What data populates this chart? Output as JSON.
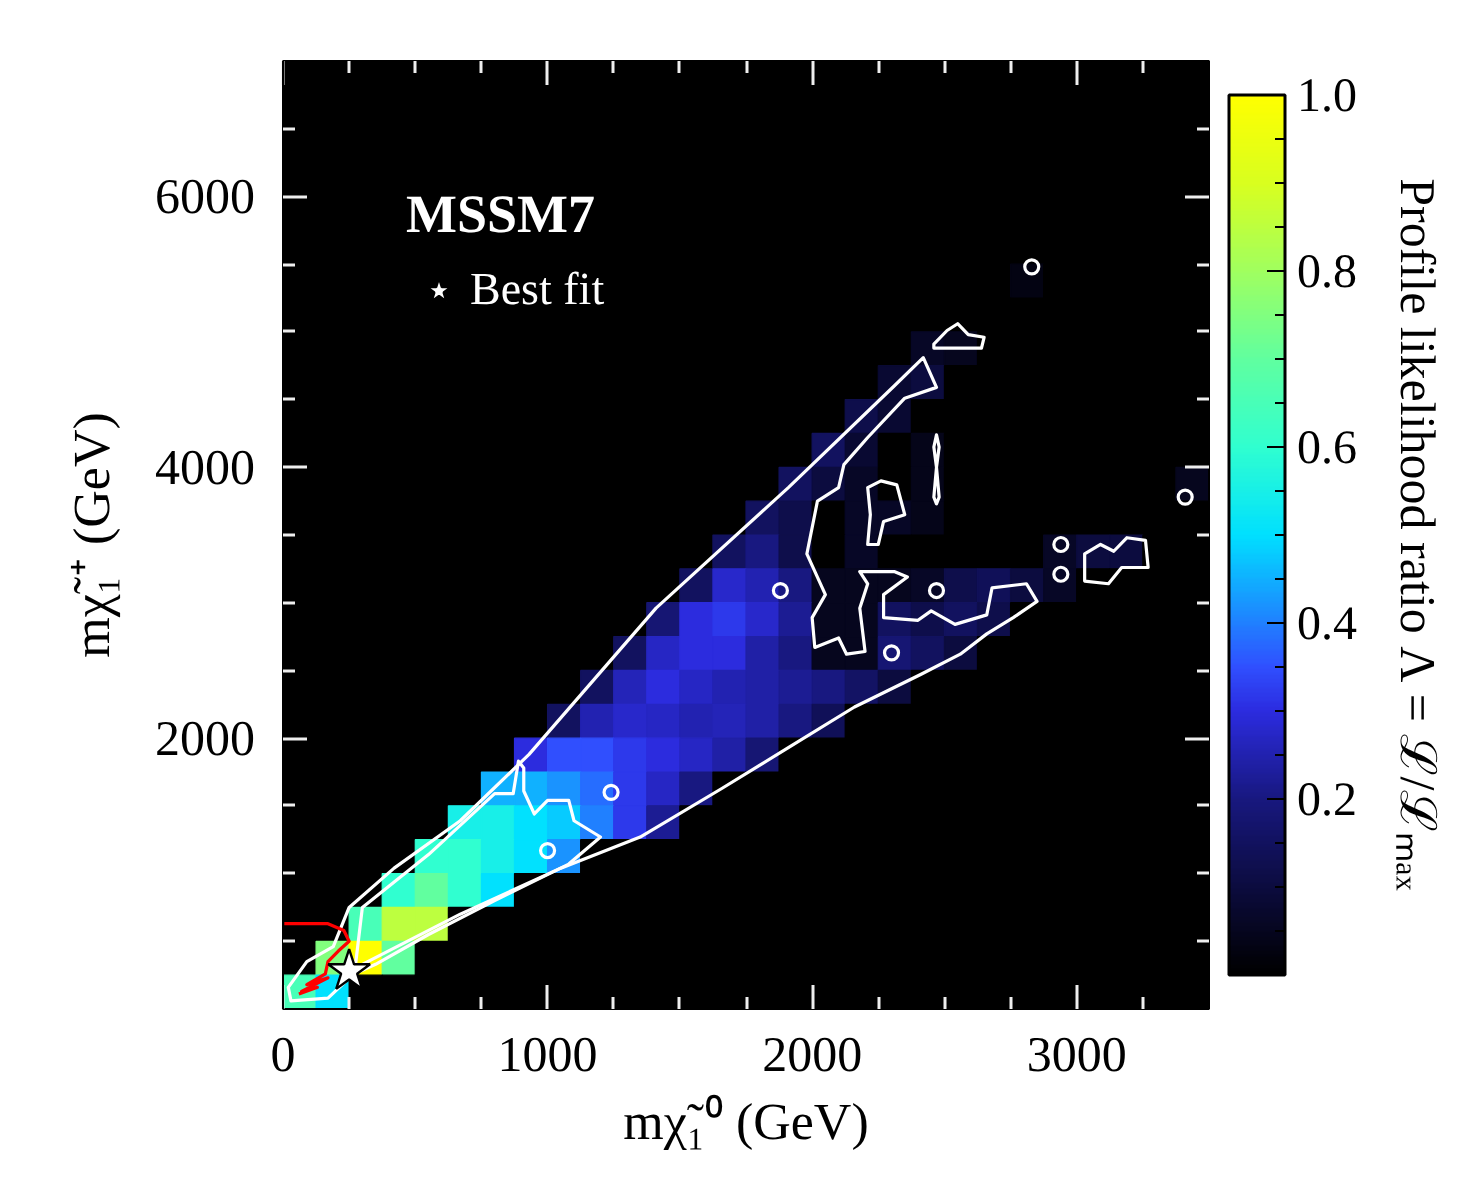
{
  "chart_data": {
    "type": "heatmap",
    "xlabel": "mχ̃₁⁰ (GeV)",
    "ylabel": "mχ̃₁⁺ (GeV)",
    "clabel": "Profile likelihood ratio Λ = ℒ/ℒₘₐₓ",
    "legend_title": "MSSM7",
    "legend": "top left",
    "xlim": [
      0,
      3500
    ],
    "ylim": [
      0,
      7000
    ],
    "xticks": [
      0,
      {
        "value": 250,
        "label": null
      },
      {
        "value": 500,
        "label": null
      },
      {
        "value": 750,
        "label": null
      },
      1000,
      {
        "value": 1250,
        "label": null
      },
      {
        "value": 1500,
        "label": null
      },
      {
        "value": 1750,
        "label": null
      },
      2000,
      {
        "value": 2250,
        "label": null
      },
      {
        "value": 2500,
        "label": null
      },
      {
        "value": 2750,
        "label": null
      },
      3000,
      {
        "value": 3250,
        "label": null
      }
    ],
    "yticks": [
      {
        "value": 500,
        "label": null
      },
      {
        "value": 1000,
        "label": null
      },
      {
        "value": 1500,
        "label": null
      },
      2000,
      {
        "value": 2500,
        "label": null
      },
      {
        "value": 3000,
        "label": null
      },
      {
        "value": 3500,
        "label": null
      },
      4000,
      {
        "value": 4500,
        "label": null
      },
      {
        "value": 5000,
        "label": null
      },
      {
        "value": 5500,
        "label": null
      },
      6000,
      {
        "value": 6500,
        "label": null
      }
    ],
    "clim": [
      0,
      1
    ],
    "cticks": [
      {
        "value": 0.05,
        "label": null
      },
      {
        "value": 0.1,
        "label": null
      },
      {
        "value": 0.15,
        "label": null
      },
      0.2,
      {
        "value": 0.25,
        "label": null
      },
      {
        "value": 0.3,
        "label": null
      },
      {
        "value": 0.35,
        "label": null
      },
      0.4,
      {
        "value": 0.45,
        "label": null
      },
      {
        "value": 0.5,
        "label": null
      },
      {
        "value": 0.55,
        "label": null
      },
      0.6,
      {
        "value": 0.65,
        "label": null
      },
      {
        "value": 0.7,
        "label": null
      },
      {
        "value": 0.75,
        "label": null
      },
      0.8,
      {
        "value": 0.85,
        "label": null
      },
      {
        "value": 0.9,
        "label": null
      },
      {
        "value": 0.95,
        "label": null
      },
      {
        "value": 1,
        "label": "1.0"
      }
    ],
    "cells": [
      [
        0,
        0,
        0,
        0,
        0,
        0,
        0,
        0,
        0,
        0,
        0,
        0,
        0,
        0,
        0,
        0,
        0,
        0,
        0,
        0,
        0,
        0,
        0,
        0,
        0,
        0,
        0,
        0
      ],
      [
        0,
        0,
        0,
        0,
        0,
        0,
        0,
        0,
        0,
        0,
        0,
        0,
        0,
        0,
        0,
        0,
        0,
        0,
        0,
        0,
        0,
        0,
        0,
        0,
        0,
        0,
        0,
        0
      ],
      [
        0,
        0,
        0,
        0,
        0,
        0,
        0,
        0,
        0,
        0,
        0,
        0,
        0,
        0,
        0,
        0,
        0,
        0,
        0,
        0,
        0,
        0,
        0,
        0,
        0,
        0,
        0,
        0
      ],
      [
        0,
        0,
        0,
        0,
        0,
        0,
        0,
        0,
        0,
        0,
        0,
        0,
        0,
        0,
        0,
        0,
        0,
        0,
        0,
        0,
        0,
        0,
        0,
        0,
        0,
        0,
        0,
        0
      ],
      [
        0,
        0,
        0,
        0,
        0,
        0,
        0,
        0,
        0,
        0,
        0,
        0,
        0,
        0,
        0,
        0,
        0,
        0,
        0,
        0,
        0,
        0,
        0,
        0,
        0,
        0,
        0,
        0
      ],
      [
        0,
        0,
        0,
        0,
        0,
        0,
        0,
        0,
        0,
        0,
        0,
        0,
        0,
        0,
        0,
        0,
        0,
        0,
        0,
        0,
        0,
        0,
        0,
        0,
        0,
        0,
        0,
        0
      ],
      [
        0,
        0,
        0,
        0,
        0,
        0,
        0,
        0,
        0,
        0,
        0,
        0,
        0,
        0,
        0,
        0,
        0,
        0,
        0,
        0,
        0,
        0,
        0.03,
        0,
        0,
        0,
        0,
        0
      ],
      [
        0,
        0,
        0,
        0,
        0,
        0,
        0,
        0,
        0,
        0,
        0,
        0,
        0,
        0,
        0,
        0,
        0,
        0,
        0,
        0,
        0,
        0,
        0,
        0,
        0,
        0,
        0,
        0
      ],
      [
        0,
        0,
        0,
        0,
        0,
        0,
        0,
        0,
        0,
        0,
        0,
        0,
        0,
        0,
        0,
        0,
        0,
        0,
        0,
        0.06,
        0.05,
        0,
        0,
        0,
        0,
        0,
        0,
        0
      ],
      [
        0,
        0,
        0,
        0,
        0,
        0,
        0,
        0,
        0,
        0,
        0,
        0,
        0,
        0,
        0,
        0,
        0,
        0,
        0.08,
        0.1,
        0,
        0,
        0,
        0,
        0,
        0,
        0,
        0
      ],
      [
        0,
        0,
        0,
        0,
        0,
        0,
        0,
        0,
        0,
        0,
        0,
        0,
        0,
        0,
        0,
        0,
        0,
        0.12,
        0.08,
        0,
        0,
        0,
        0,
        0,
        0,
        0,
        0,
        0
      ],
      [
        0,
        0,
        0,
        0,
        0,
        0,
        0,
        0,
        0,
        0,
        0,
        0,
        0,
        0,
        0,
        0,
        0.15,
        0.08,
        0,
        0.04,
        0,
        0,
        0,
        0,
        0,
        0,
        0,
        0
      ],
      [
        0,
        0,
        0,
        0,
        0,
        0,
        0,
        0,
        0,
        0,
        0,
        0,
        0,
        0,
        0,
        0.15,
        0.1,
        0.06,
        0,
        0.04,
        0,
        0,
        0,
        0,
        0,
        0,
        0,
        0.05
      ],
      [
        0,
        0,
        0,
        0,
        0,
        0,
        0,
        0,
        0,
        0,
        0,
        0,
        0,
        0,
        0.15,
        0.12,
        0,
        0.06,
        0.06,
        0.04,
        0,
        0,
        0,
        0,
        0,
        0,
        0,
        0
      ],
      [
        0,
        0,
        0,
        0,
        0,
        0,
        0,
        0,
        0,
        0,
        0,
        0,
        0,
        0.15,
        0.2,
        0.12,
        0,
        0.06,
        0,
        0,
        0,
        0,
        0,
        0.06,
        0.1,
        0.1,
        0,
        0
      ],
      [
        0,
        0,
        0,
        0,
        0,
        0,
        0,
        0,
        0,
        0,
        0,
        0,
        0.15,
        0.28,
        0.25,
        0.2,
        0.05,
        0.05,
        0.05,
        0.06,
        0.12,
        0.14,
        0.1,
        0.06,
        0,
        0,
        0,
        0
      ],
      [
        0,
        0,
        0,
        0,
        0,
        0,
        0,
        0,
        0,
        0,
        0,
        0.18,
        0.3,
        0.32,
        0.28,
        0.22,
        0.05,
        0.05,
        0.15,
        0.12,
        0.15,
        0.12,
        0,
        0,
        0,
        0,
        0,
        0
      ],
      [
        0,
        0,
        0,
        0,
        0,
        0,
        0,
        0,
        0,
        0,
        0.15,
        0.27,
        0.3,
        0.3,
        0.24,
        0.2,
        0.05,
        0.05,
        0.18,
        0.15,
        0.1,
        0,
        0,
        0,
        0,
        0,
        0,
        0
      ],
      [
        0,
        0,
        0,
        0,
        0,
        0,
        0,
        0,
        0,
        0.15,
        0.26,
        0.3,
        0.27,
        0.25,
        0.24,
        0.22,
        0.2,
        0.16,
        0.1,
        0,
        0,
        0,
        0,
        0,
        0,
        0,
        0,
        0
      ],
      [
        0,
        0,
        0,
        0,
        0,
        0,
        0,
        0,
        0.15,
        0.25,
        0.28,
        0.27,
        0.25,
        0.26,
        0.24,
        0.2,
        0.14,
        0,
        0,
        0,
        0,
        0,
        0,
        0,
        0,
        0,
        0,
        0
      ],
      [
        0,
        0,
        0,
        0,
        0,
        0,
        0,
        0.3,
        0.35,
        0.35,
        0.32,
        0.3,
        0.27,
        0.24,
        0.18,
        0,
        0,
        0,
        0,
        0,
        0,
        0,
        0,
        0,
        0,
        0,
        0,
        0
      ],
      [
        0,
        0,
        0,
        0,
        0,
        0,
        0.45,
        0.45,
        0.42,
        0.38,
        0.32,
        0.27,
        0.2,
        0,
        0,
        0,
        0,
        0,
        0,
        0,
        0,
        0,
        0,
        0,
        0,
        0,
        0,
        0
      ],
      [
        0,
        0,
        0,
        0,
        0,
        0.55,
        0.55,
        0.5,
        0.48,
        0.4,
        0.32,
        0.22,
        0,
        0,
        0,
        0,
        0,
        0,
        0,
        0,
        0,
        0,
        0,
        0,
        0,
        0,
        0,
        0
      ],
      [
        0,
        0,
        0,
        0,
        0.6,
        0.6,
        0.55,
        0.5,
        0.42,
        0,
        0,
        0,
        0,
        0,
        0,
        0,
        0,
        0,
        0,
        0,
        0,
        0,
        0,
        0,
        0,
        0,
        0,
        0
      ],
      [
        0,
        0,
        0,
        0.6,
        0.7,
        0.6,
        0.5,
        0,
        0,
        0,
        0,
        0,
        0,
        0,
        0,
        0,
        0,
        0,
        0,
        0,
        0,
        0,
        0,
        0,
        0,
        0,
        0,
        0
      ],
      [
        0,
        0,
        0.65,
        0.85,
        0.85,
        0,
        0,
        0,
        0,
        0,
        0,
        0,
        0,
        0,
        0,
        0,
        0,
        0,
        0,
        0,
        0,
        0,
        0,
        0,
        0,
        0,
        0,
        0
      ],
      [
        0,
        0.75,
        1.0,
        0.7,
        0,
        0,
        0,
        0,
        0,
        0,
        0,
        0,
        0,
        0,
        0,
        0,
        0,
        0,
        0,
        0,
        0,
        0,
        0,
        0,
        0,
        0,
        0,
        0
      ],
      [
        0.65,
        0.5,
        0,
        0,
        0,
        0,
        0,
        0,
        0,
        0,
        0,
        0,
        0,
        0,
        0,
        0,
        0,
        0,
        0,
        0,
        0,
        0,
        0,
        0,
        0,
        0,
        0,
        0
      ]
    ],
    "series": [
      {
        "type": "line",
        "color": "#ffffff",
        "x": [
          30,
          20,
          90,
          190,
          250,
          420,
          670,
          930,
          1410,
          1910,
          2310,
          2420,
          2470,
          2350,
          2210,
          2120,
          2100,
          2020,
          1980,
          2050,
          2000,
          2010,
          2100,
          2130,
          2200,
          2180,
          2210,
          2180,
          2310,
          2360,
          2270,
          2270,
          2400,
          2450,
          2540,
          2660,
          2680,
          2810,
          2850,
          2760,
          2660,
          2560,
          2410,
          2160,
          1910,
          1660,
          1350,
          1050,
          670,
          300,
          240,
          170,
          30,
          20,
          90
        ],
        "values": [
          60,
          160,
          350,
          460,
          750,
          1040,
          1390,
          1880,
          2960,
          3850,
          4600,
          4810,
          4590,
          4510,
          4220,
          4020,
          3850,
          3750,
          3360,
          3060,
          2890,
          2670,
          2740,
          2620,
          2640,
          2960,
          3140,
          3230,
          3230,
          3190,
          3060,
          2890,
          2870,
          2940,
          2840,
          2910,
          3110,
          3140,
          3010,
          2890,
          2770,
          2620,
          2470,
          2230,
          1930,
          1630,
          1270,
          1040,
          700,
          330,
          210,
          80,
          60,
          160,
          350
        ]
      },
      {
        "type": "line",
        "color": "#ffffff",
        "x": [
          270,
          300,
          550,
          800,
          870,
          890,
          910,
          910,
          950,
          1000,
          1080,
          1100,
          1200,
          1080,
          800,
          550,
          350,
          270,
          300,
          550
        ],
        "values": [
          260,
          750,
          1140,
          1590,
          1590,
          1830,
          1780,
          1610,
          1440,
          1540,
          1540,
          1390,
          1270,
          1070,
          800,
          550,
          330,
          260,
          750,
          1140
        ]
      },
      {
        "type": "line",
        "color": "#ffffff",
        "x": [
          2460,
          2510,
          2550,
          2590,
          2650,
          2640,
          2460,
          2460,
          2510,
          2550
        ],
        "values": [
          4910,
          5010,
          5060,
          4980,
          4960,
          4880,
          4880,
          4910,
          5010,
          5060
        ]
      },
      {
        "type": "line",
        "color": "#ffffff",
        "x": [
          2470,
          2480,
          2470,
          2480,
          2470,
          2460,
          2470,
          2460,
          2470,
          2480,
          2470
        ],
        "values": [
          4240,
          4150,
          4000,
          3780,
          3730,
          3780,
          4000,
          4150,
          4240,
          4150,
          4000
        ]
      },
      {
        "type": "line",
        "color": "#ffffff",
        "x": [
          3030,
          3030,
          3090,
          3140,
          3190,
          3260,
          3270,
          3170,
          3120,
          3030,
          3030,
          3090
        ],
        "values": [
          3160,
          3360,
          3430,
          3380,
          3480,
          3460,
          3260,
          3260,
          3140,
          3160,
          3360,
          3430
        ]
      },
      {
        "type": "line",
        "color": "#ffffff",
        "x": [
          2210,
          2220,
          2210,
          2260,
          2320,
          2350,
          2270,
          2250,
          2210,
          2220,
          2210
        ],
        "values": [
          3430,
          3650,
          3850,
          3900,
          3870,
          3650,
          3600,
          3430,
          3430,
          3650,
          3850
        ]
      },
      {
        "type": "line",
        "color": "#ff0000",
        "x": [
          5,
          170,
          230,
          250,
          210,
          170,
          160,
          90,
          170,
          70,
          130,
          60
        ],
        "values": [
          630,
          630,
          580,
          500,
          430,
          350,
          260,
          180,
          230,
          130,
          160,
          110
        ]
      },
      {
        "type": "scatter",
        "color": "#ffffff",
        "marker": "circle",
        "x": [
          1240,
          1000,
          2830,
          2470,
          2940,
          2940,
          3410,
          1880,
          2300
        ],
        "values": [
          1600,
          1170,
          5480,
          3090,
          3430,
          3210,
          3780,
          3090,
          2630
        ]
      },
      {
        "type": "scatter",
        "name": "Best fit",
        "color": "#ffffff",
        "marker": "star",
        "x": [
          250
        ],
        "values": [
          280
        ]
      }
    ]
  }
}
